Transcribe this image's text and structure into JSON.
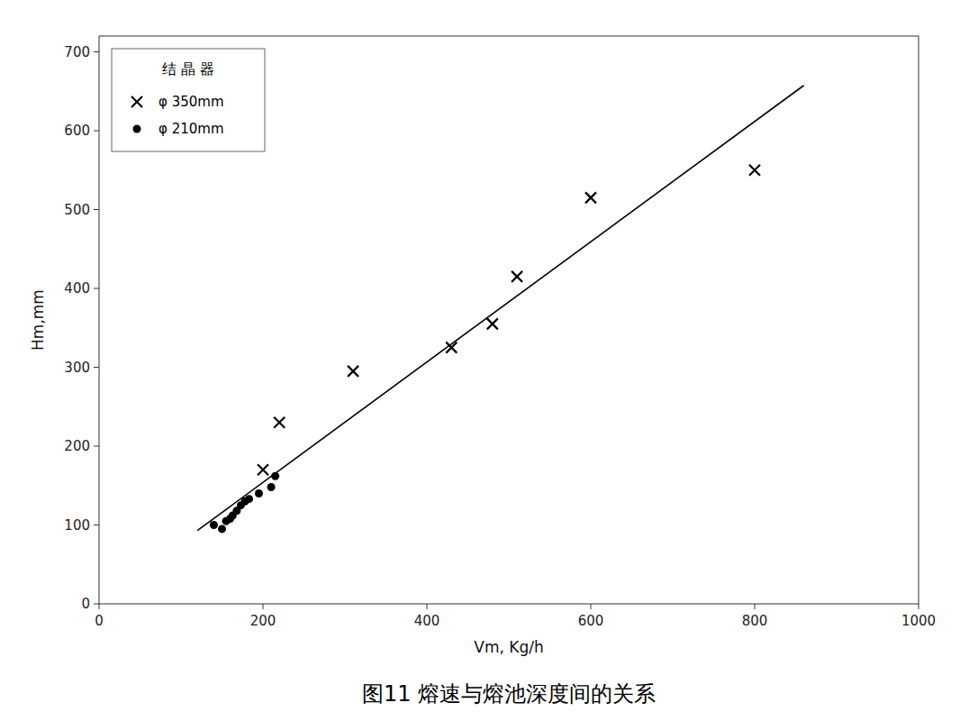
{
  "chart_data": {
    "type": "scatter",
    "title": "图11    熔速与熔池深度间的关系",
    "x_label": "Vm, Kg/h",
    "y_label": "Hm,mm",
    "xlim": [
      0,
      1000
    ],
    "ylim": [
      0,
      720
    ],
    "xticks": [
      0,
      200,
      400,
      600,
      800,
      1000
    ],
    "yticks": [
      0,
      100,
      200,
      300,
      400,
      500,
      600,
      700
    ],
    "legend": "upper left",
    "legend_title": "结 晶 器",
    "series": [
      {
        "name": "φ 350mm",
        "type": "scatter",
        "marker": "x",
        "color": "#000000",
        "x": [
          200,
          220,
          310,
          430,
          480,
          510,
          600,
          800
        ],
        "values": [
          170,
          230,
          295,
          325,
          355,
          415,
          515,
          550
        ]
      },
      {
        "name": "φ 210mm",
        "type": "scatter",
        "marker": "circle",
        "color": "#000000",
        "x": [
          140,
          150,
          155,
          160,
          163,
          168,
          173,
          178,
          183,
          195,
          210,
          215
        ],
        "values": [
          100,
          95,
          105,
          108,
          112,
          118,
          125,
          130,
          133,
          140,
          148,
          162
        ]
      },
      {
        "type": "line",
        "line_style": "solid",
        "color": "#000000",
        "x": [
          120,
          860
        ],
        "values": [
          92.981,
          657.431
        ]
      }
    ]
  }
}
